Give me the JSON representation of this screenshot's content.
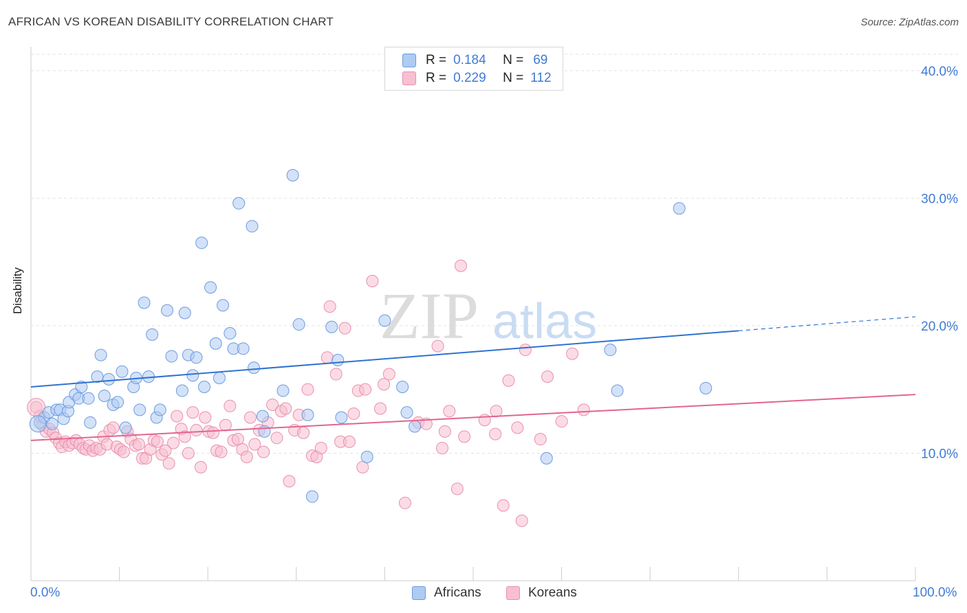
{
  "title": "AFRICAN VS KOREAN DISABILITY CORRELATION CHART",
  "source": "Source: ZipAtlas.com",
  "watermark": {
    "zip": "ZIP",
    "atlas": "atlas"
  },
  "legend": {
    "r_label": "R =",
    "n_label": "N =",
    "africans": {
      "r": "0.184",
      "n": "69"
    },
    "koreans": {
      "r": "0.229",
      "n": "112"
    }
  },
  "colors": {
    "africans_fill": "#aecbf3",
    "africans_stroke": "#6b9be0",
    "africans_line": "#2f72d0",
    "koreans_fill": "#f7bfd0",
    "koreans_stroke": "#e98fae",
    "koreans_line": "#e2658f",
    "axis_text": "#3f7bd6"
  },
  "chart_data": {
    "type": "scatter",
    "title": "AFRICAN VS KOREAN DISABILITY CORRELATION CHART",
    "xlabel": "",
    "ylabel": "Disability",
    "xlim": [
      0,
      100
    ],
    "ylim": [
      0,
      41.5
    ],
    "x_tick_labels": {
      "left": "0.0%",
      "right": "100.0%"
    },
    "y_ticks": [
      10,
      20,
      30,
      40
    ],
    "y_tick_labels": [
      "10.0%",
      "20.0%",
      "30.0%",
      "40.0%"
    ],
    "series": [
      {
        "name": "Africans",
        "r": 0.184,
        "n": 69,
        "trend": {
          "x0": 0,
          "y0": 15.2,
          "x1": 80,
          "y1": 19.6,
          "dashed_to_x": 100,
          "dashed_to_y": 20.7
        },
        "points": [
          [
            1.0,
            12.4
          ],
          [
            1.5,
            12.8
          ],
          [
            2.0,
            13.2
          ],
          [
            2.4,
            12.3
          ],
          [
            2.9,
            13.4
          ],
          [
            3.3,
            13.4
          ],
          [
            3.7,
            12.7
          ],
          [
            4.2,
            13.3
          ],
          [
            4.3,
            14.0
          ],
          [
            5.0,
            14.6
          ],
          [
            5.4,
            14.3
          ],
          [
            5.7,
            15.2
          ],
          [
            6.5,
            14.3
          ],
          [
            6.7,
            12.4
          ],
          [
            7.5,
            16.0
          ],
          [
            7.9,
            17.7
          ],
          [
            8.3,
            14.5
          ],
          [
            8.8,
            15.8
          ],
          [
            9.3,
            13.8
          ],
          [
            9.8,
            14.0
          ],
          [
            10.3,
            16.4
          ],
          [
            10.7,
            12.0
          ],
          [
            11.6,
            15.2
          ],
          [
            11.9,
            15.9
          ],
          [
            12.3,
            13.4
          ],
          [
            12.8,
            21.8
          ],
          [
            13.3,
            16.0
          ],
          [
            13.7,
            19.3
          ],
          [
            14.2,
            12.8
          ],
          [
            14.6,
            13.4
          ],
          [
            15.4,
            21.2
          ],
          [
            15.9,
            17.6
          ],
          [
            17.1,
            14.9
          ],
          [
            17.4,
            21.0
          ],
          [
            17.8,
            17.7
          ],
          [
            18.3,
            16.1
          ],
          [
            18.7,
            17.5
          ],
          [
            19.3,
            26.5
          ],
          [
            19.6,
            15.2
          ],
          [
            20.3,
            23.0
          ],
          [
            20.9,
            18.6
          ],
          [
            21.3,
            15.9
          ],
          [
            21.7,
            21.6
          ],
          [
            22.5,
            19.4
          ],
          [
            22.9,
            18.2
          ],
          [
            23.5,
            29.6
          ],
          [
            24.0,
            18.2
          ],
          [
            25.0,
            27.8
          ],
          [
            25.2,
            16.7
          ],
          [
            26.2,
            12.9
          ],
          [
            26.4,
            11.7
          ],
          [
            28.5,
            14.9
          ],
          [
            29.6,
            31.8
          ],
          [
            30.3,
            20.1
          ],
          [
            31.3,
            13.0
          ],
          [
            31.8,
            6.6
          ],
          [
            34.0,
            19.9
          ],
          [
            34.7,
            17.3
          ],
          [
            35.1,
            12.8
          ],
          [
            38.0,
            9.7
          ],
          [
            40.0,
            20.4
          ],
          [
            42.0,
            15.2
          ],
          [
            42.5,
            13.2
          ],
          [
            43.4,
            12.1
          ],
          [
            58.3,
            9.6
          ],
          [
            65.5,
            18.1
          ],
          [
            66.3,
            14.9
          ],
          [
            73.3,
            29.2
          ],
          [
            76.3,
            15.1
          ]
        ]
      },
      {
        "name": "Koreans",
        "r": 0.229,
        "n": 112,
        "trend": {
          "x0": 0,
          "y0": 11.0,
          "x1": 100,
          "y1": 14.6
        },
        "points": [
          [
            0.6,
            13.6
          ],
          [
            1.0,
            12.9
          ],
          [
            1.3,
            12.2
          ],
          [
            1.7,
            11.7
          ],
          [
            2.1,
            11.9
          ],
          [
            2.5,
            11.6
          ],
          [
            2.8,
            11.2
          ],
          [
            3.2,
            10.8
          ],
          [
            3.5,
            10.5
          ],
          [
            3.9,
            10.9
          ],
          [
            4.3,
            10.6
          ],
          [
            4.7,
            10.8
          ],
          [
            5.1,
            11.0
          ],
          [
            5.5,
            10.7
          ],
          [
            5.9,
            10.4
          ],
          [
            6.2,
            10.3
          ],
          [
            6.6,
            10.6
          ],
          [
            7.0,
            10.2
          ],
          [
            7.4,
            10.4
          ],
          [
            7.8,
            10.3
          ],
          [
            8.2,
            11.3
          ],
          [
            8.6,
            10.7
          ],
          [
            8.9,
            11.8
          ],
          [
            9.3,
            12.0
          ],
          [
            9.7,
            10.5
          ],
          [
            10.1,
            10.3
          ],
          [
            10.5,
            10.1
          ],
          [
            10.9,
            11.7
          ],
          [
            11.3,
            11.1
          ],
          [
            11.8,
            10.6
          ],
          [
            12.2,
            10.7
          ],
          [
            12.6,
            9.6
          ],
          [
            13.0,
            9.6
          ],
          [
            13.5,
            10.3
          ],
          [
            13.9,
            11.0
          ],
          [
            14.3,
            10.9
          ],
          [
            14.8,
            9.9
          ],
          [
            15.2,
            10.2
          ],
          [
            15.6,
            9.2
          ],
          [
            16.1,
            10.8
          ],
          [
            16.5,
            12.9
          ],
          [
            17.0,
            11.9
          ],
          [
            17.4,
            11.3
          ],
          [
            17.8,
            10.0
          ],
          [
            18.3,
            13.2
          ],
          [
            18.7,
            11.8
          ],
          [
            19.2,
            8.9
          ],
          [
            19.7,
            12.8
          ],
          [
            20.1,
            11.7
          ],
          [
            20.6,
            11.6
          ],
          [
            21.0,
            10.2
          ],
          [
            21.5,
            10.1
          ],
          [
            22.0,
            12.2
          ],
          [
            22.5,
            13.7
          ],
          [
            22.9,
            11.0
          ],
          [
            23.4,
            11.1
          ],
          [
            23.9,
            10.3
          ],
          [
            24.4,
            9.7
          ],
          [
            24.8,
            12.8
          ],
          [
            25.3,
            10.7
          ],
          [
            25.8,
            11.8
          ],
          [
            26.3,
            10.1
          ],
          [
            26.8,
            12.4
          ],
          [
            27.3,
            13.8
          ],
          [
            27.8,
            11.2
          ],
          [
            28.3,
            13.3
          ],
          [
            28.8,
            13.5
          ],
          [
            29.2,
            7.8
          ],
          [
            29.8,
            11.8
          ],
          [
            30.3,
            13.0
          ],
          [
            30.8,
            11.6
          ],
          [
            31.3,
            15.0
          ],
          [
            31.8,
            9.8
          ],
          [
            32.3,
            9.7
          ],
          [
            32.8,
            10.4
          ],
          [
            33.5,
            17.5
          ],
          [
            33.8,
            21.5
          ],
          [
            34.5,
            16.2
          ],
          [
            35.0,
            10.9
          ],
          [
            35.5,
            19.8
          ],
          [
            36.0,
            10.9
          ],
          [
            36.5,
            13.1
          ],
          [
            37.0,
            14.9
          ],
          [
            37.5,
            8.9
          ],
          [
            37.8,
            15.0
          ],
          [
            38.6,
            23.5
          ],
          [
            39.5,
            13.5
          ],
          [
            39.9,
            15.4
          ],
          [
            40.5,
            16.2
          ],
          [
            42.3,
            6.1
          ],
          [
            43.8,
            12.4
          ],
          [
            44.7,
            12.3
          ],
          [
            46.0,
            18.4
          ],
          [
            46.5,
            10.4
          ],
          [
            46.8,
            11.7
          ],
          [
            47.3,
            13.3
          ],
          [
            48.2,
            7.2
          ],
          [
            48.6,
            24.7
          ],
          [
            49.0,
            11.3
          ],
          [
            51.3,
            12.6
          ],
          [
            52.5,
            11.5
          ],
          [
            52.6,
            13.3
          ],
          [
            53.4,
            5.9
          ],
          [
            54.0,
            15.7
          ],
          [
            55.0,
            12.0
          ],
          [
            55.5,
            4.7
          ],
          [
            55.9,
            18.1
          ],
          [
            57.6,
            11.1
          ],
          [
            58.4,
            16.0
          ],
          [
            60.0,
            12.5
          ],
          [
            61.2,
            17.8
          ],
          [
            62.5,
            13.4
          ]
        ]
      }
    ]
  },
  "bottom_legend": {
    "africans": "Africans",
    "koreans": "Koreans"
  }
}
